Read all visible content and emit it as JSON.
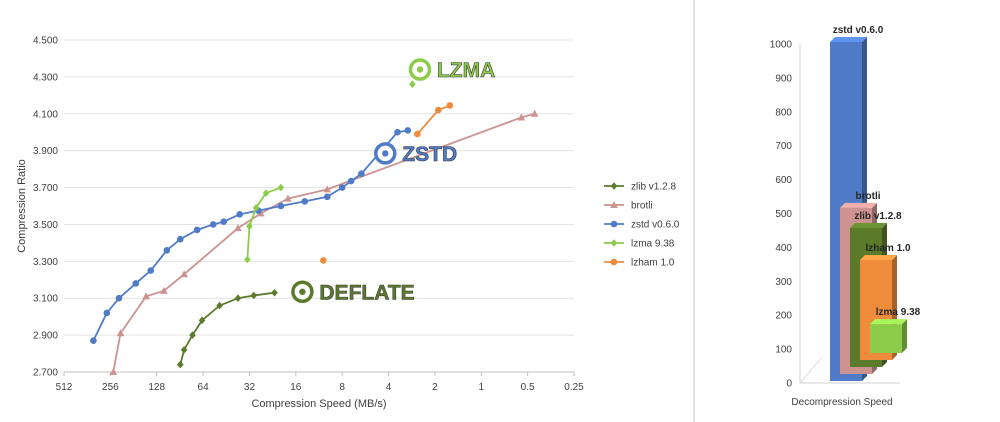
{
  "left_chart": {
    "type": "line",
    "xlabel": "Compression Speed (MB/s)",
    "ylabel": "Compression Ratio",
    "x_scale": "log2-reversed",
    "xlim": [
      512,
      0.25
    ],
    "ylim": [
      2.7,
      4.5
    ],
    "y_ticks": [
      "2.700",
      "2.900",
      "3.100",
      "3.300",
      "3.500",
      "3.700",
      "3.900",
      "4.100",
      "4.300",
      "4.500"
    ],
    "x_ticks": [
      "512",
      "256",
      "128",
      "64",
      "32",
      "16",
      "8",
      "4",
      "2",
      "1",
      "0.5",
      "0.25"
    ],
    "legend": [
      "zlib v1.2.8",
      "brotli",
      "zstd v0.6.0",
      "lzma 9.38",
      "lzham 1.0"
    ],
    "series": [
      {
        "name": "zlib v1.2.8",
        "color": "#5b7b2b",
        "marker": "diamond",
        "x": [
          90,
          85,
          75,
          65,
          50,
          38,
          30,
          22
        ],
        "y": [
          2.74,
          2.82,
          2.9,
          2.98,
          3.06,
          3.1,
          3.115,
          3.13
        ]
      },
      {
        "name": "brotli",
        "color": "#cc9390",
        "marker": "triangle",
        "x": [
          245,
          220,
          150,
          115,
          85,
          38,
          27,
          18,
          10,
          0.55,
          0.45
        ],
        "y": [
          2.7,
          2.91,
          3.11,
          3.14,
          3.23,
          3.48,
          3.56,
          3.64,
          3.69,
          4.08,
          4.1
        ]
      },
      {
        "name": "zstd v0.6.0",
        "color": "#4f7bc8",
        "marker": "circle",
        "x": [
          330,
          270,
          225,
          175,
          140,
          110,
          90,
          70,
          55,
          47,
          37,
          28,
          20,
          14,
          10,
          8,
          7,
          6,
          3.5,
          3
        ],
        "y": [
          2.87,
          3.02,
          3.1,
          3.18,
          3.25,
          3.36,
          3.42,
          3.47,
          3.5,
          3.515,
          3.555,
          3.575,
          3.6,
          3.625,
          3.65,
          3.7,
          3.735,
          3.775,
          4.0,
          4.01
        ]
      },
      {
        "name": "lzma 9.38",
        "color": "#8ccc4a",
        "marker": "diamond",
        "x": [
          33,
          32,
          29,
          25,
          20
        ],
        "y": [
          3.31,
          3.49,
          3.59,
          3.67,
          3.7
        ]
      },
      {
        "name": "lzham 1.0",
        "color": "#ee8c3c",
        "marker": "circle",
        "x": [
          2.6,
          1.9,
          1.6
        ],
        "y": [
          3.99,
          4.12,
          4.145
        ]
      },
      {
        "name": "",
        "color": "#ee8c3c",
        "marker": "circle",
        "x": [
          10.6
        ],
        "y": [
          3.305
        ]
      },
      {
        "name": "",
        "color": "#8ccc4a",
        "marker": "diamond",
        "x": [
          2.8
        ],
        "y": [
          4.26
        ]
      }
    ],
    "callouts": [
      {
        "text": "LZMA",
        "color": "#8ccc4a",
        "x": 2.5,
        "y": 4.34
      },
      {
        "text": "ZSTD",
        "color": "#4f7bc8",
        "x": 4.2,
        "y": 3.885
      },
      {
        "text": "DEFLATE",
        "color": "#5b7b2b",
        "x": 14.5,
        "y": 3.135
      }
    ]
  },
  "right_chart": {
    "type": "bar",
    "xlabel": "Decompression Speed",
    "ylim": [
      0,
      1000
    ],
    "y_ticks": [
      "0",
      "100",
      "200",
      "300",
      "400",
      "500",
      "600",
      "700",
      "800",
      "900",
      "1000"
    ],
    "bars": [
      {
        "name": "lzma 9.38",
        "value": 85,
        "color": "#8ccc4a"
      },
      {
        "name": "lzham 1.0",
        "value": 295,
        "color": "#ee8c3c"
      },
      {
        "name": "zlib v1.2.8",
        "value": 410,
        "color": "#5b7b2b"
      },
      {
        "name": "brotli",
        "value": 490,
        "color": "#cc9390"
      },
      {
        "name": "zstd v0.6.0",
        "value": 1000,
        "color": "#4f7bc8"
      }
    ]
  }
}
